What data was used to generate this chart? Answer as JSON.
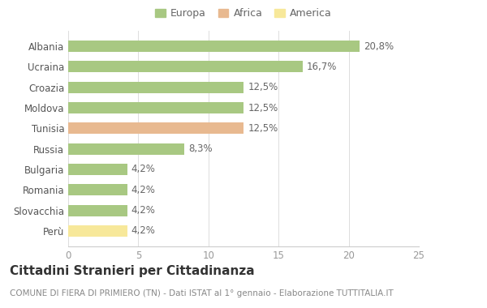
{
  "categories": [
    "Perù",
    "Slovacchia",
    "Romania",
    "Bulgaria",
    "Russia",
    "Tunisia",
    "Moldova",
    "Croazia",
    "Ucraina",
    "Albania"
  ],
  "values": [
    4.2,
    4.2,
    4.2,
    4.2,
    8.3,
    12.5,
    12.5,
    12.5,
    16.7,
    20.8
  ],
  "labels": [
    "4,2%",
    "4,2%",
    "4,2%",
    "4,2%",
    "8,3%",
    "12,5%",
    "12,5%",
    "12,5%",
    "16,7%",
    "20,8%"
  ],
  "colors": [
    "#f7e89a",
    "#a8c882",
    "#a8c882",
    "#a8c882",
    "#a8c882",
    "#e8b990",
    "#a8c882",
    "#a8c882",
    "#a8c882",
    "#a8c882"
  ],
  "legend_labels": [
    "Europa",
    "Africa",
    "America"
  ],
  "legend_colors": [
    "#a8c882",
    "#e8b990",
    "#f7e89a"
  ],
  "title": "Cittadini Stranieri per Cittadinanza",
  "subtitle": "COMUNE DI FIERA DI PRIMIERO (TN) - Dati ISTAT al 1° gennaio - Elaborazione TUTTITALIA.IT",
  "xlim": [
    0,
    25
  ],
  "xticks": [
    0,
    5,
    10,
    15,
    20,
    25
  ],
  "bg_color": "#ffffff",
  "plot_bg_color": "#ffffff",
  "bar_height": 0.55,
  "label_fontsize": 8.5,
  "title_fontsize": 11,
  "subtitle_fontsize": 7.5,
  "tick_fontsize": 8.5,
  "legend_fontsize": 9
}
